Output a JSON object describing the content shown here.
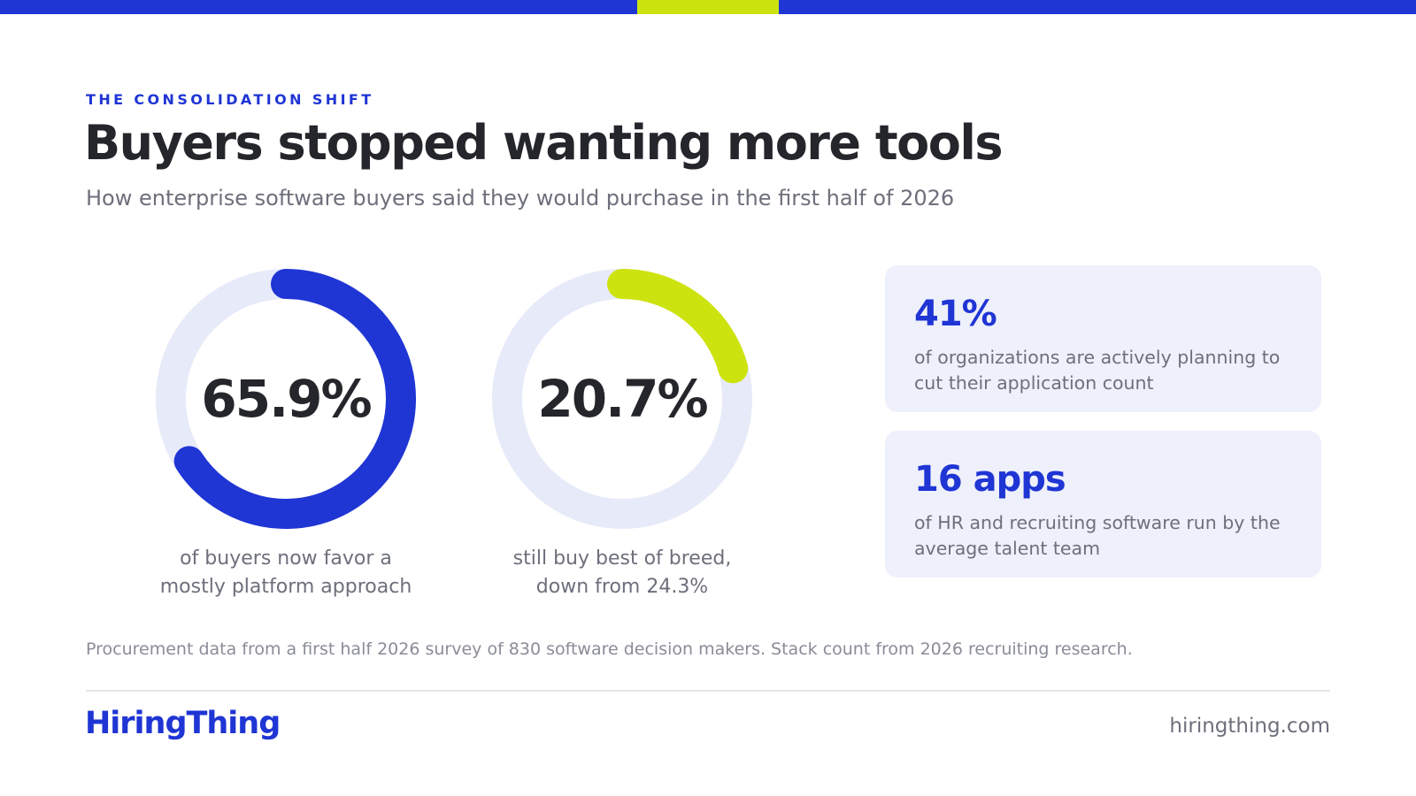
{
  "eyebrow": "THE CONSOLIDATION SHIFT",
  "title": "Buyers stopped wanting more tools",
  "subtitle": "How enterprise software buyers said they would purchase in the first half of 2026",
  "colors": {
    "brand_blue": "#1f35d4",
    "accent_lime": "#cde30f",
    "track": "#e7eaf8",
    "card_bg": "#eef0fb",
    "text_dark": "#25262b",
    "text_muted": "#6d6f7b"
  },
  "chart_data": [
    {
      "type": "pie",
      "variant": "donut",
      "value": 65.9,
      "max": 100,
      "value_label": "65.9%",
      "caption": [
        "of buyers now favor a",
        "mostly platform approach"
      ],
      "color": "#1f35d4"
    },
    {
      "type": "pie",
      "variant": "donut",
      "value": 20.7,
      "max": 100,
      "value_label": "20.7%",
      "caption": [
        "still buy best of breed,",
        "down from 24.3%"
      ],
      "color": "#cde30f"
    }
  ],
  "stats": [
    {
      "value": "41%",
      "description": "of organizations are actively planning to cut their application count"
    },
    {
      "value": "16 apps",
      "description": "of HR and recruiting software run by the average talent team"
    }
  ],
  "footnote": "Procurement data from a first half 2026 survey of 830 software decision makers. Stack count from 2026 recruiting research.",
  "footer": {
    "brand": "HiringThing",
    "site": "hiringthing.com"
  }
}
